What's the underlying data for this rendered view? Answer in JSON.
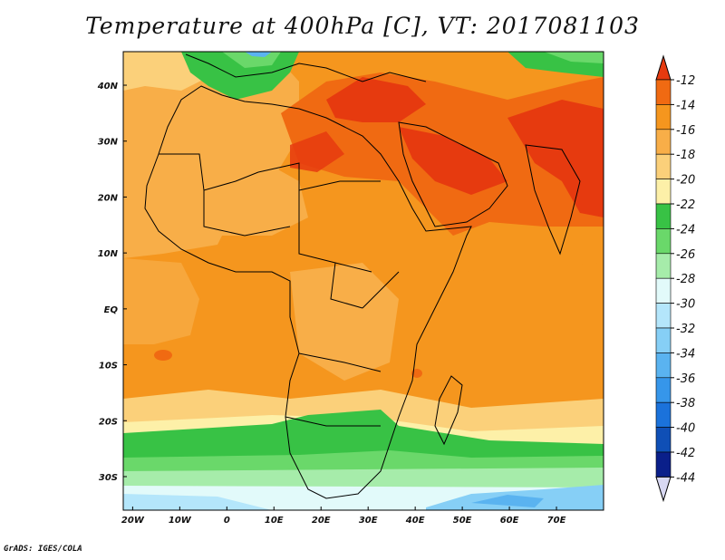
{
  "title": "Temperature at 400hPa [C], VT: 2017081103",
  "credit": "GrADS: IGES/COLA",
  "map": {
    "lon_range": [
      -22,
      80
    ],
    "lat_range": [
      -36,
      46
    ],
    "lon_ticks": [
      {
        "value": -20,
        "label": "20W"
      },
      {
        "value": -10,
        "label": "10W"
      },
      {
        "value": 0,
        "label": "0"
      },
      {
        "value": 10,
        "label": "10E"
      },
      {
        "value": 20,
        "label": "20E"
      },
      {
        "value": 30,
        "label": "30E"
      },
      {
        "value": 40,
        "label": "40E"
      },
      {
        "value": 50,
        "label": "50E"
      },
      {
        "value": 60,
        "label": "60E"
      },
      {
        "value": 70,
        "label": "70E"
      }
    ],
    "lat_ticks": [
      {
        "value": 40,
        "label": "40N"
      },
      {
        "value": 30,
        "label": "30N"
      },
      {
        "value": 20,
        "label": "20N"
      },
      {
        "value": 10,
        "label": "10N"
      },
      {
        "value": 0,
        "label": "EQ"
      },
      {
        "value": -10,
        "label": "10S"
      },
      {
        "value": -20,
        "label": "20S"
      },
      {
        "value": -30,
        "label": "30S"
      }
    ]
  },
  "colorbar": {
    "labels": [
      "-12",
      "-14",
      "-16",
      "-18",
      "-20",
      "-22",
      "-24",
      "-26",
      "-28",
      "-30",
      "-32",
      "-34",
      "-36",
      "-38",
      "-40",
      "-42",
      "-44"
    ],
    "colors": [
      "#e63a0f",
      "#f06a12",
      "#f5961e",
      "#f8ae48",
      "#fbd07a",
      "#fdf0a8",
      "#38c245",
      "#6ad86a",
      "#a6ecaa",
      "#e2fafa",
      "#b4e6fb",
      "#86cff6",
      "#5ab3f0",
      "#3696ea",
      "#1b72db",
      "#0f4fb6",
      "#0a1f8a"
    ],
    "top_arrow_color": "#e63a0f",
    "bottom_arrow_color": "#d8d8f2"
  },
  "colors": {
    "t_m12": "#e63a0f",
    "t_m14": "#f06a12",
    "t_m16": "#f5961e",
    "t_m18": "#f8ae48",
    "t_m20": "#fbd07a",
    "t_m22": "#fdf0a8",
    "t_m24": "#38c245",
    "t_m26": "#6ad86a",
    "t_m28": "#a6ecaa",
    "t_m30": "#e2fafa",
    "t_m32": "#b4e6fb",
    "t_m34": "#86cff6",
    "t_m36": "#5ab3f0"
  }
}
